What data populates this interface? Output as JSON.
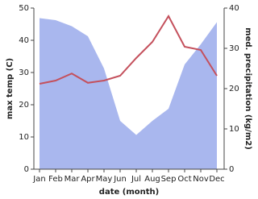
{
  "chart_data": {
    "type": "line-area",
    "x_label": "date (month)",
    "y_label": "max temp (C)",
    "y2_label": "med. precipitation (kg/m2)",
    "categories": [
      "Jan",
      "Feb",
      "Mar",
      "Apr",
      "May",
      "Jun",
      "Jul",
      "Aug",
      "Sep",
      "Oct",
      "Nov",
      "Dec"
    ],
    "series": [
      {
        "name": "med. precipitation",
        "kind": "area",
        "axis": "y2",
        "color": "#a9b7ee",
        "values": [
          37.5,
          37,
          35.5,
          33,
          25,
          12,
          8.5,
          12,
          15,
          26,
          31,
          36.5
        ]
      },
      {
        "name": "max temp",
        "kind": "line",
        "color": "#c4505c",
        "values": [
          26.5,
          27.5,
          29.7,
          26.8,
          27.5,
          29,
          34.5,
          39.5,
          47.5,
          38,
          37,
          29
        ]
      }
    ],
    "ylim": [
      0,
      50
    ],
    "yticks": [
      0,
      10,
      20,
      30,
      40,
      50
    ],
    "y2lim": [
      0,
      40
    ],
    "y2ticks": [
      0,
      10,
      20,
      30,
      40
    ]
  }
}
